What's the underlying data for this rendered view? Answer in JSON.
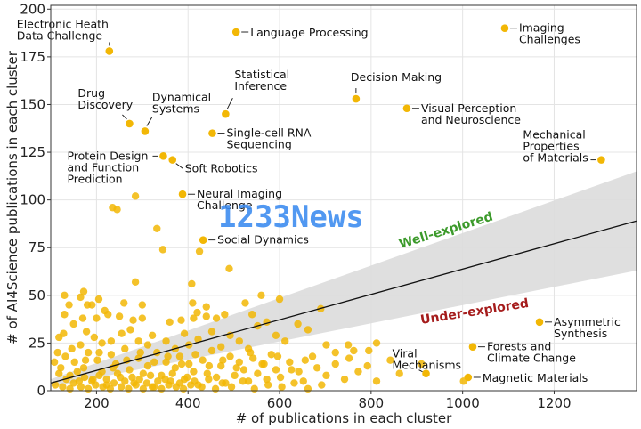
{
  "chart_data": {
    "type": "scatter",
    "xlabel": "# of publications in each cluster",
    "ylabel": "# of AI4Science publications in each cluster",
    "xlim": [
      100,
      1380
    ],
    "ylim": [
      0,
      202
    ],
    "xticks": [
      200,
      400,
      600,
      800,
      1000,
      1200
    ],
    "yticks": [
      0,
      25,
      50,
      75,
      100,
      125,
      150,
      175,
      200
    ],
    "grid": true,
    "point_color": "#f2b705",
    "fit_line": {
      "x": [
        100,
        1380
      ],
      "y": [
        4,
        89
      ]
    },
    "band": {
      "upper": [
        6,
        115
      ],
      "lower": [
        2,
        63
      ]
    },
    "regions": [
      {
        "text": "Well-explored",
        "color": "#3c9a2b"
      },
      {
        "text": "Under-explored",
        "color": "#a51c1c"
      }
    ],
    "labeled_points": [
      {
        "x": 228,
        "y": 178,
        "lines": [
          "Electronic Heath",
          "Data Challenge"
        ]
      },
      {
        "x": 505,
        "y": 188,
        "lines": [
          "Language Processing"
        ]
      },
      {
        "x": 1092,
        "y": 190,
        "lines": [
          "Imaging",
          "Challenges"
        ]
      },
      {
        "x": 767,
        "y": 153,
        "lines": [
          "Decision Making"
        ]
      },
      {
        "x": 272,
        "y": 140,
        "lines": [
          "Drug",
          "Discovery"
        ]
      },
      {
        "x": 306,
        "y": 136,
        "lines": [
          "Dynamical",
          "Systems"
        ]
      },
      {
        "x": 482,
        "y": 145,
        "lines": [
          "Statistical",
          "Inference"
        ]
      },
      {
        "x": 878,
        "y": 148,
        "lines": [
          "Visual Perception",
          "and Neuroscience"
        ]
      },
      {
        "x": 453,
        "y": 135,
        "lines": [
          "Single-cell RNA",
          "Sequencing"
        ]
      },
      {
        "x": 346,
        "y": 123,
        "lines": [
          "Protein Design",
          "and Function",
          "Prediction"
        ]
      },
      {
        "x": 366,
        "y": 121,
        "lines": [
          "Soft Robotics"
        ]
      },
      {
        "x": 1303,
        "y": 121,
        "lines": [
          "Mechanical",
          "Properties",
          "of Materials"
        ]
      },
      {
        "x": 388,
        "y": 103,
        "lines": [
          "Neural Imaging",
          "Challenge"
        ]
      },
      {
        "x": 433,
        "y": 79,
        "lines": [
          "Social Dynamics"
        ]
      },
      {
        "x": 1168,
        "y": 36,
        "lines": [
          "Asymmetric",
          "Synthesis"
        ]
      },
      {
        "x": 920,
        "y": 9,
        "lines": [
          "Viral",
          "Mechanisms"
        ]
      },
      {
        "x": 1022,
        "y": 23,
        "lines": [
          "Forests and",
          "Climate Change"
        ]
      },
      {
        "x": 1012,
        "y": 7,
        "lines": [
          "Magnetic Materials"
        ]
      }
    ],
    "other_points": [
      [
        285,
        102
      ],
      [
        235,
        96
      ],
      [
        245,
        95
      ],
      [
        332,
        85
      ],
      [
        345,
        74
      ],
      [
        425,
        73
      ],
      [
        490,
        64
      ],
      [
        285,
        57
      ],
      [
        408,
        56
      ],
      [
        130,
        50
      ],
      [
        172,
        52
      ],
      [
        165,
        49
      ],
      [
        205,
        48
      ],
      [
        260,
        46
      ],
      [
        410,
        46
      ],
      [
        525,
        46
      ],
      [
        140,
        45
      ],
      [
        180,
        45
      ],
      [
        190,
        45
      ],
      [
        218,
        42
      ],
      [
        300,
        45
      ],
      [
        420,
        41
      ],
      [
        440,
        44
      ],
      [
        130,
        40
      ],
      [
        170,
        38
      ],
      [
        200,
        38
      ],
      [
        225,
        40
      ],
      [
        250,
        39
      ],
      [
        280,
        37
      ],
      [
        300,
        38
      ],
      [
        360,
        36
      ],
      [
        385,
        37
      ],
      [
        412,
        38
      ],
      [
        440,
        39
      ],
      [
        462,
        38
      ],
      [
        480,
        40
      ],
      [
        540,
        40
      ],
      [
        560,
        50
      ],
      [
        600,
        48
      ],
      [
        690,
        43
      ],
      [
        118,
        28
      ],
      [
        128,
        30
      ],
      [
        150,
        35
      ],
      [
        165,
        24
      ],
      [
        178,
        31
      ],
      [
        195,
        28
      ],
      [
        212,
        25
      ],
      [
        232,
        26
      ],
      [
        255,
        30
      ],
      [
        274,
        32
      ],
      [
        292,
        26
      ],
      [
        312,
        24
      ],
      [
        322,
        29
      ],
      [
        352,
        26
      ],
      [
        372,
        22
      ],
      [
        392,
        30
      ],
      [
        402,
        24
      ],
      [
        422,
        27
      ],
      [
        452,
        31
      ],
      [
        472,
        23
      ],
      [
        492,
        29
      ],
      [
        512,
        26
      ],
      [
        532,
        22
      ],
      [
        552,
        34
      ],
      [
        572,
        36
      ],
      [
        592,
        29
      ],
      [
        612,
        26
      ],
      [
        640,
        35
      ],
      [
        662,
        32
      ],
      [
        702,
        24
      ],
      [
        722,
        20
      ],
      [
        750,
        24
      ],
      [
        762,
        21
      ],
      [
        795,
        21
      ],
      [
        812,
        25
      ],
      [
        122,
        12
      ],
      [
        132,
        18
      ],
      [
        142,
        8
      ],
      [
        152,
        15
      ],
      [
        162,
        5
      ],
      [
        172,
        12
      ],
      [
        182,
        20
      ],
      [
        192,
        6
      ],
      [
        202,
        16
      ],
      [
        212,
        10
      ],
      [
        222,
        3
      ],
      [
        232,
        19
      ],
      [
        242,
        14
      ],
      [
        252,
        7
      ],
      [
        262,
        22
      ],
      [
        272,
        11
      ],
      [
        282,
        4
      ],
      [
        292,
        17
      ],
      [
        302,
        9
      ],
      [
        312,
        13
      ],
      [
        322,
        2
      ],
      [
        332,
        20
      ],
      [
        342,
        8
      ],
      [
        352,
        15
      ],
      [
        362,
        5
      ],
      [
        372,
        12
      ],
      [
        382,
        18
      ],
      [
        392,
        6
      ],
      [
        402,
        14
      ],
      [
        412,
        10
      ],
      [
        422,
        3
      ],
      [
        432,
        16
      ],
      [
        442,
        9
      ],
      [
        452,
        21
      ],
      [
        462,
        7
      ],
      [
        472,
        13
      ],
      [
        482,
        4
      ],
      [
        492,
        18
      ],
      [
        502,
        8
      ],
      [
        512,
        15
      ],
      [
        522,
        11
      ],
      [
        532,
        5
      ],
      [
        542,
        17
      ],
      [
        552,
        9
      ],
      [
        562,
        14
      ],
      [
        572,
        6
      ],
      [
        582,
        19
      ],
      [
        592,
        11
      ],
      [
        602,
        7
      ],
      [
        622,
        15
      ],
      [
        642,
        10
      ],
      [
        652,
        5
      ],
      [
        672,
        18
      ],
      [
        682,
        12
      ],
      [
        702,
        8
      ],
      [
        722,
        14
      ],
      [
        742,
        6
      ],
      [
        752,
        17
      ],
      [
        772,
        10
      ],
      [
        792,
        13
      ],
      [
        812,
        5
      ],
      [
        842,
        16
      ],
      [
        862,
        9
      ],
      [
        910,
        14
      ],
      [
        1002,
        5
      ],
      [
        110,
        3
      ],
      [
        118,
        9
      ],
      [
        126,
        2
      ],
      [
        134,
        6
      ],
      [
        142,
        1
      ],
      [
        150,
        4
      ],
      [
        158,
        10
      ],
      [
        166,
        2
      ],
      [
        174,
        7
      ],
      [
        182,
        1
      ],
      [
        190,
        5
      ],
      [
        198,
        3
      ],
      [
        206,
        8
      ],
      [
        214,
        2
      ],
      [
        222,
        6
      ],
      [
        230,
        1
      ],
      [
        238,
        4
      ],
      [
        246,
        9
      ],
      [
        254,
        2
      ],
      [
        262,
        5
      ],
      [
        270,
        1
      ],
      [
        278,
        7
      ],
      [
        286,
        3
      ],
      [
        294,
        6
      ],
      [
        302,
        1
      ],
      [
        310,
        4
      ],
      [
        318,
        8
      ],
      [
        326,
        2
      ],
      [
        334,
        5
      ],
      [
        342,
        1
      ],
      [
        350,
        6
      ],
      [
        358,
        3
      ],
      [
        366,
        9
      ],
      [
        374,
        2
      ],
      [
        382,
        4
      ],
      [
        390,
        1
      ],
      [
        398,
        7
      ],
      [
        406,
        3
      ],
      [
        414,
        5
      ],
      [
        430,
        2
      ],
      [
        445,
        6
      ],
      [
        460,
        1
      ],
      [
        475,
        4
      ],
      [
        495,
        2
      ],
      [
        520,
        5
      ],
      [
        545,
        1
      ],
      [
        575,
        3
      ],
      [
        605,
        2
      ],
      [
        632,
        4
      ],
      [
        662,
        1
      ],
      [
        692,
        3
      ],
      [
        108,
        15
      ],
      [
        115,
        20
      ],
      [
        146,
        22
      ],
      [
        176,
        16
      ],
      [
        206,
        20
      ],
      [
        236,
        12
      ],
      [
        266,
        16
      ],
      [
        296,
        20
      ],
      [
        326,
        15
      ],
      [
        356,
        18
      ],
      [
        386,
        14
      ],
      [
        416,
        19
      ],
      [
        446,
        13
      ],
      [
        476,
        16
      ],
      [
        506,
        12
      ],
      [
        536,
        20
      ],
      [
        566,
        14
      ],
      [
        596,
        18
      ],
      [
        626,
        11
      ],
      [
        656,
        16
      ]
    ],
    "watermark": "1233News"
  }
}
